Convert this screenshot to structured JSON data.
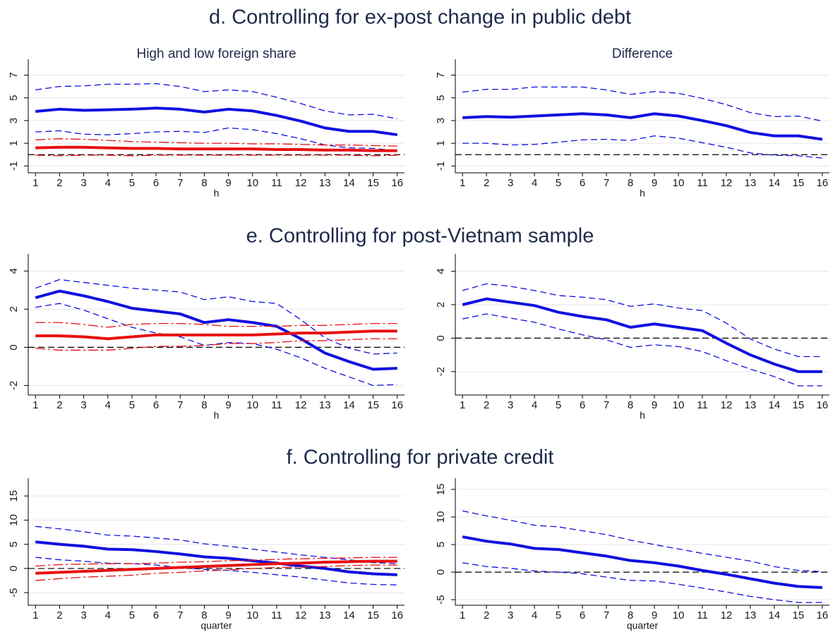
{
  "sections": [
    "d. Controlling for ex-post change in public debt",
    "e. Controlling for post-Vietnam sample",
    "f. Controlling for private credit"
  ],
  "chart_data": [
    {
      "type": "line",
      "subtitle": "High and low foreign share",
      "xlabel": "h",
      "x": [
        1,
        2,
        3,
        4,
        5,
        6,
        7,
        8,
        9,
        10,
        11,
        12,
        13,
        14,
        15,
        16
      ],
      "xlim": [
        0.7,
        16.3
      ],
      "xticks": [
        1,
        2,
        3,
        4,
        5,
        6,
        7,
        8,
        9,
        10,
        11,
        12,
        13,
        14,
        15,
        16
      ],
      "ylim": [
        -1.6,
        7.9
      ],
      "yticks": [
        -1,
        1,
        3,
        5,
        7
      ],
      "grid": true,
      "hline": 0,
      "series": [
        {
          "color": "#1010e0",
          "dash": "solid",
          "values": [
            3.8,
            4.0,
            3.9,
            3.95,
            4.0,
            4.1,
            4.0,
            3.75,
            4.0,
            3.85,
            3.45,
            2.95,
            2.35,
            2.05,
            2.05,
            1.75
          ]
        },
        {
          "color": "#1010e0",
          "dash": "dash",
          "values": [
            5.7,
            6.0,
            6.05,
            6.2,
            6.2,
            6.25,
            6.0,
            5.55,
            5.7,
            5.55,
            5.05,
            4.5,
            3.85,
            3.5,
            3.55,
            3.15
          ]
        },
        {
          "color": "#1010e0",
          "dash": "dash",
          "values": [
            2.0,
            2.1,
            1.8,
            1.75,
            1.85,
            2.0,
            2.05,
            1.95,
            2.35,
            2.2,
            1.85,
            1.4,
            0.85,
            0.6,
            0.55,
            0.35
          ]
        },
        {
          "color": "#e81010",
          "dash": "solid",
          "values": [
            0.6,
            0.65,
            0.65,
            0.6,
            0.55,
            0.55,
            0.5,
            0.5,
            0.5,
            0.5,
            0.45,
            0.45,
            0.4,
            0.4,
            0.35,
            0.35
          ]
        },
        {
          "color": "#e81010",
          "dash": "dashdot",
          "values": [
            1.3,
            1.4,
            1.35,
            1.25,
            1.15,
            1.1,
            1.05,
            1.0,
            1.0,
            0.95,
            0.95,
            0.9,
            0.85,
            0.85,
            0.8,
            0.75
          ]
        },
        {
          "color": "#e81010",
          "dash": "dashdot",
          "values": [
            -0.05,
            -0.1,
            -0.05,
            -0.05,
            -0.1,
            -0.05,
            -0.05,
            -0.05,
            -0.05,
            -0.05,
            -0.05,
            -0.05,
            -0.05,
            -0.05,
            -0.1,
            -0.05
          ]
        }
      ]
    },
    {
      "type": "line",
      "subtitle": "Difference",
      "xlabel": "h",
      "x": [
        1,
        2,
        3,
        4,
        5,
        6,
        7,
        8,
        9,
        10,
        11,
        12,
        13,
        14,
        15,
        16
      ],
      "xlim": [
        0.7,
        16.3
      ],
      "xticks": [
        1,
        2,
        3,
        4,
        5,
        6,
        7,
        8,
        9,
        10,
        11,
        12,
        13,
        14,
        15,
        16
      ],
      "ylim": [
        -1.6,
        7.9
      ],
      "yticks": [
        -1,
        1,
        3,
        5,
        7
      ],
      "grid": true,
      "hline": 0,
      "series": [
        {
          "color": "#1010e0",
          "dash": "solid",
          "values": [
            3.25,
            3.35,
            3.3,
            3.4,
            3.5,
            3.6,
            3.5,
            3.25,
            3.6,
            3.4,
            3.0,
            2.55,
            1.95,
            1.65,
            1.65,
            1.35
          ]
        },
        {
          "color": "#1010e0",
          "dash": "dash",
          "values": [
            5.5,
            5.75,
            5.75,
            5.95,
            5.95,
            5.95,
            5.7,
            5.3,
            5.55,
            5.4,
            4.95,
            4.4,
            3.7,
            3.35,
            3.4,
            2.95
          ]
        },
        {
          "color": "#1010e0",
          "dash": "dash",
          "values": [
            1.0,
            1.0,
            0.85,
            0.9,
            1.1,
            1.3,
            1.35,
            1.25,
            1.65,
            1.45,
            1.05,
            0.65,
            0.15,
            -0.05,
            -0.1,
            -0.3
          ]
        }
      ]
    },
    {
      "type": "line",
      "xlabel": "h",
      "x": [
        1,
        2,
        3,
        4,
        5,
        6,
        7,
        8,
        9,
        10,
        11,
        12,
        13,
        14,
        15,
        16
      ],
      "xlim": [
        0.7,
        16.3
      ],
      "xticks": [
        1,
        2,
        3,
        4,
        5,
        6,
        7,
        8,
        9,
        10,
        11,
        12,
        13,
        14,
        15,
        16
      ],
      "ylim": [
        -2.5,
        4.6
      ],
      "yticks": [
        -2,
        0,
        2,
        4
      ],
      "grid": true,
      "hline": 0,
      "series": [
        {
          "color": "#1010e0",
          "dash": "solid",
          "values": [
            2.6,
            2.95,
            2.7,
            2.4,
            2.05,
            1.9,
            1.75,
            1.3,
            1.45,
            1.3,
            1.1,
            0.45,
            -0.3,
            -0.75,
            -1.15,
            -1.1
          ]
        },
        {
          "color": "#1010e0",
          "dash": "dash",
          "values": [
            3.1,
            3.55,
            3.4,
            3.25,
            3.1,
            3.0,
            2.9,
            2.5,
            2.65,
            2.4,
            2.3,
            1.45,
            0.5,
            -0.05,
            -0.35,
            -0.3
          ]
        },
        {
          "color": "#1010e0",
          "dash": "dash",
          "values": [
            2.1,
            2.3,
            1.95,
            1.5,
            1.05,
            0.75,
            0.55,
            0.1,
            0.25,
            0.2,
            -0.1,
            -0.55,
            -1.1,
            -1.55,
            -2.0,
            -1.95
          ]
        },
        {
          "color": "#e81010",
          "dash": "solid",
          "values": [
            0.6,
            0.6,
            0.55,
            0.45,
            0.55,
            0.65,
            0.65,
            0.65,
            0.65,
            0.65,
            0.7,
            0.75,
            0.75,
            0.8,
            0.85,
            0.85
          ]
        },
        {
          "color": "#e81010",
          "dash": "dashdot",
          "values": [
            1.3,
            1.3,
            1.2,
            1.05,
            1.2,
            1.25,
            1.25,
            1.2,
            1.1,
            1.1,
            1.1,
            1.15,
            1.15,
            1.2,
            1.25,
            1.25
          ]
        },
        {
          "color": "#e81010",
          "dash": "dashdot",
          "values": [
            -0.05,
            -0.15,
            -0.15,
            -0.15,
            -0.05,
            0.05,
            0.05,
            0.1,
            0.2,
            0.2,
            0.25,
            0.35,
            0.35,
            0.4,
            0.45,
            0.45
          ]
        }
      ]
    },
    {
      "type": "line",
      "xlabel": "h",
      "x": [
        1,
        2,
        3,
        4,
        5,
        6,
        7,
        8,
        9,
        10,
        11,
        12,
        13,
        14,
        15,
        16
      ],
      "xlim": [
        0.7,
        16.3
      ],
      "xticks": [
        1,
        2,
        3,
        4,
        5,
        6,
        7,
        8,
        9,
        10,
        11,
        12,
        13,
        14,
        15,
        16
      ],
      "ylim": [
        -3.4,
        4.7
      ],
      "yticks": [
        -2,
        0,
        2,
        4
      ],
      "grid": true,
      "hline": 0,
      "series": [
        {
          "color": "#1010e0",
          "dash": "solid",
          "values": [
            2.0,
            2.35,
            2.15,
            1.95,
            1.55,
            1.3,
            1.1,
            0.65,
            0.85,
            0.65,
            0.45,
            -0.3,
            -1.0,
            -1.55,
            -2.0,
            -2.0
          ]
        },
        {
          "color": "#1010e0",
          "dash": "dash",
          "values": [
            2.85,
            3.25,
            3.1,
            2.85,
            2.55,
            2.45,
            2.3,
            1.9,
            2.05,
            1.8,
            1.65,
            0.9,
            -0.05,
            -0.65,
            -1.1,
            -1.1
          ]
        },
        {
          "color": "#1010e0",
          "dash": "dash",
          "values": [
            1.15,
            1.45,
            1.2,
            0.95,
            0.55,
            0.2,
            -0.1,
            -0.55,
            -0.4,
            -0.5,
            -0.8,
            -1.35,
            -1.85,
            -2.3,
            -2.85,
            -2.85
          ]
        }
      ]
    },
    {
      "type": "line",
      "xlabel": "quarter",
      "x": [
        1,
        2,
        3,
        4,
        5,
        6,
        7,
        8,
        9,
        10,
        11,
        12,
        13,
        14,
        15,
        16
      ],
      "xlim": [
        0.7,
        16.3
      ],
      "xticks": [
        1,
        2,
        3,
        4,
        5,
        6,
        7,
        8,
        9,
        10,
        11,
        12,
        13,
        14,
        15,
        16
      ],
      "ylim": [
        -7.6,
        17.5
      ],
      "yticks": [
        -5,
        0,
        5,
        10,
        15
      ],
      "grid": true,
      "hline": 0,
      "series": [
        {
          "color": "#1010e0",
          "dash": "solid",
          "values": [
            5.5,
            5.0,
            4.6,
            4.0,
            3.9,
            3.5,
            3.0,
            2.4,
            2.1,
            1.6,
            1.1,
            0.5,
            0,
            -0.7,
            -1.1,
            -1.3
          ]
        },
        {
          "color": "#1010e0",
          "dash": "dash",
          "values": [
            8.7,
            8.2,
            7.6,
            6.9,
            6.7,
            6.3,
            5.9,
            5.1,
            4.6,
            4.0,
            3.4,
            2.8,
            2.3,
            1.8,
            1.2,
            1.0
          ]
        },
        {
          "color": "#1010e0",
          "dash": "dash",
          "values": [
            2.3,
            1.8,
            1.5,
            1.1,
            1.0,
            0.7,
            0.2,
            -0.2,
            -0.4,
            -0.8,
            -1.3,
            -1.8,
            -2.4,
            -3.0,
            -3.3,
            -3.4
          ]
        },
        {
          "color": "#e81010",
          "dash": "solid",
          "values": [
            -1.0,
            -0.8,
            -0.6,
            -0.4,
            -0.2,
            0,
            0.2,
            0.4,
            0.6,
            0.8,
            1.0,
            1.1,
            1.3,
            1.4,
            1.5,
            1.5
          ]
        },
        {
          "color": "#e81010",
          "dash": "dashdot",
          "values": [
            0.5,
            0.8,
            0.9,
            1.0,
            1.0,
            1.1,
            1.3,
            1.4,
            1.6,
            1.7,
            1.9,
            2.0,
            2.1,
            2.2,
            2.3,
            2.3
          ]
        },
        {
          "color": "#e81010",
          "dash": "dashdot",
          "values": [
            -2.5,
            -2.1,
            -1.8,
            -1.6,
            -1.4,
            -1.0,
            -0.8,
            -0.5,
            -0.3,
            0,
            0.2,
            0.3,
            0.4,
            0.6,
            0.7,
            0.7
          ]
        }
      ]
    },
    {
      "type": "line",
      "xlabel": "quarter",
      "x": [
        1,
        2,
        3,
        4,
        5,
        6,
        7,
        8,
        9,
        10,
        11,
        12,
        13,
        14,
        15,
        16
      ],
      "xlim": [
        0.7,
        16.3
      ],
      "xticks": [
        1,
        2,
        3,
        4,
        5,
        6,
        7,
        8,
        9,
        10,
        11,
        12,
        13,
        14,
        15,
        16
      ],
      "ylim": [
        -6,
        16
      ],
      "yticks": [
        -5,
        0,
        5,
        10,
        15
      ],
      "grid": true,
      "hline": 0,
      "series": [
        {
          "color": "#1010e0",
          "dash": "solid",
          "values": [
            6.4,
            5.6,
            5.1,
            4.3,
            4.1,
            3.5,
            2.9,
            2.1,
            1.7,
            1.1,
            0.3,
            -0.4,
            -1.2,
            -2.0,
            -2.6,
            -2.8
          ]
        },
        {
          "color": "#1010e0",
          "dash": "dash",
          "values": [
            11.1,
            10.2,
            9.4,
            8.5,
            8.2,
            7.5,
            6.8,
            5.8,
            5.0,
            4.2,
            3.4,
            2.7,
            2.0,
            1.0,
            0.3,
            0.1
          ]
        },
        {
          "color": "#1010e0",
          "dash": "dash",
          "values": [
            1.7,
            1.0,
            0.7,
            0.2,
            0,
            -0.3,
            -0.9,
            -1.5,
            -1.6,
            -2.2,
            -2.9,
            -3.6,
            -4.4,
            -5.0,
            -5.5,
            -5.5
          ]
        }
      ]
    }
  ]
}
